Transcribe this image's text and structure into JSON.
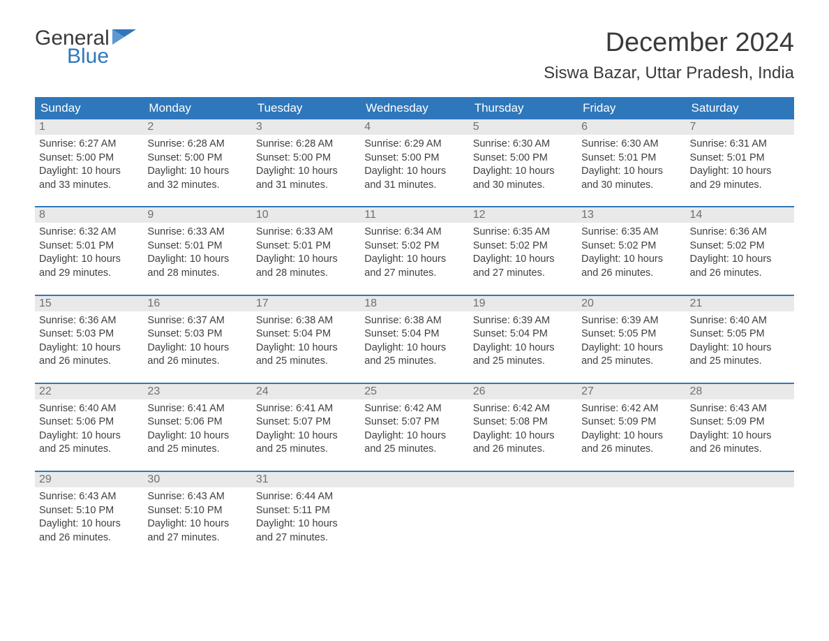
{
  "logo": {
    "word1": "General",
    "word2": "Blue"
  },
  "title": "December 2024",
  "location": "Siswa Bazar, Uttar Pradesh, India",
  "colors": {
    "header_blue": "#2f77bb",
    "daynum_bg": "#e9e9e9",
    "daynum_text": "#6f6f6f",
    "body_text": "#3f3f3f",
    "title_text": "#3a3a3a"
  },
  "fonts": {
    "title_size_pt": 28,
    "location_size_pt": 18,
    "dow_size_pt": 13,
    "body_size_pt": 11
  },
  "days_of_week": [
    "Sunday",
    "Monday",
    "Tuesday",
    "Wednesday",
    "Thursday",
    "Friday",
    "Saturday"
  ],
  "weeks": [
    [
      {
        "n": "1",
        "sunrise": "6:27 AM",
        "sunset": "5:00 PM",
        "dl_h": "10",
        "dl_m": "33"
      },
      {
        "n": "2",
        "sunrise": "6:28 AM",
        "sunset": "5:00 PM",
        "dl_h": "10",
        "dl_m": "32"
      },
      {
        "n": "3",
        "sunrise": "6:28 AM",
        "sunset": "5:00 PM",
        "dl_h": "10",
        "dl_m": "31"
      },
      {
        "n": "4",
        "sunrise": "6:29 AM",
        "sunset": "5:00 PM",
        "dl_h": "10",
        "dl_m": "31"
      },
      {
        "n": "5",
        "sunrise": "6:30 AM",
        "sunset": "5:00 PM",
        "dl_h": "10",
        "dl_m": "30"
      },
      {
        "n": "6",
        "sunrise": "6:30 AM",
        "sunset": "5:01 PM",
        "dl_h": "10",
        "dl_m": "30"
      },
      {
        "n": "7",
        "sunrise": "6:31 AM",
        "sunset": "5:01 PM",
        "dl_h": "10",
        "dl_m": "29"
      }
    ],
    [
      {
        "n": "8",
        "sunrise": "6:32 AM",
        "sunset": "5:01 PM",
        "dl_h": "10",
        "dl_m": "29"
      },
      {
        "n": "9",
        "sunrise": "6:33 AM",
        "sunset": "5:01 PM",
        "dl_h": "10",
        "dl_m": "28"
      },
      {
        "n": "10",
        "sunrise": "6:33 AM",
        "sunset": "5:01 PM",
        "dl_h": "10",
        "dl_m": "28"
      },
      {
        "n": "11",
        "sunrise": "6:34 AM",
        "sunset": "5:02 PM",
        "dl_h": "10",
        "dl_m": "27"
      },
      {
        "n": "12",
        "sunrise": "6:35 AM",
        "sunset": "5:02 PM",
        "dl_h": "10",
        "dl_m": "27"
      },
      {
        "n": "13",
        "sunrise": "6:35 AM",
        "sunset": "5:02 PM",
        "dl_h": "10",
        "dl_m": "26"
      },
      {
        "n": "14",
        "sunrise": "6:36 AM",
        "sunset": "5:02 PM",
        "dl_h": "10",
        "dl_m": "26"
      }
    ],
    [
      {
        "n": "15",
        "sunrise": "6:36 AM",
        "sunset": "5:03 PM",
        "dl_h": "10",
        "dl_m": "26"
      },
      {
        "n": "16",
        "sunrise": "6:37 AM",
        "sunset": "5:03 PM",
        "dl_h": "10",
        "dl_m": "26"
      },
      {
        "n": "17",
        "sunrise": "6:38 AM",
        "sunset": "5:04 PM",
        "dl_h": "10",
        "dl_m": "25"
      },
      {
        "n": "18",
        "sunrise": "6:38 AM",
        "sunset": "5:04 PM",
        "dl_h": "10",
        "dl_m": "25"
      },
      {
        "n": "19",
        "sunrise": "6:39 AM",
        "sunset": "5:04 PM",
        "dl_h": "10",
        "dl_m": "25"
      },
      {
        "n": "20",
        "sunrise": "6:39 AM",
        "sunset": "5:05 PM",
        "dl_h": "10",
        "dl_m": "25"
      },
      {
        "n": "21",
        "sunrise": "6:40 AM",
        "sunset": "5:05 PM",
        "dl_h": "10",
        "dl_m": "25"
      }
    ],
    [
      {
        "n": "22",
        "sunrise": "6:40 AM",
        "sunset": "5:06 PM",
        "dl_h": "10",
        "dl_m": "25"
      },
      {
        "n": "23",
        "sunrise": "6:41 AM",
        "sunset": "5:06 PM",
        "dl_h": "10",
        "dl_m": "25"
      },
      {
        "n": "24",
        "sunrise": "6:41 AM",
        "sunset": "5:07 PM",
        "dl_h": "10",
        "dl_m": "25"
      },
      {
        "n": "25",
        "sunrise": "6:42 AM",
        "sunset": "5:07 PM",
        "dl_h": "10",
        "dl_m": "25"
      },
      {
        "n": "26",
        "sunrise": "6:42 AM",
        "sunset": "5:08 PM",
        "dl_h": "10",
        "dl_m": "26"
      },
      {
        "n": "27",
        "sunrise": "6:42 AM",
        "sunset": "5:09 PM",
        "dl_h": "10",
        "dl_m": "26"
      },
      {
        "n": "28",
        "sunrise": "6:43 AM",
        "sunset": "5:09 PM",
        "dl_h": "10",
        "dl_m": "26"
      }
    ],
    [
      {
        "n": "29",
        "sunrise": "6:43 AM",
        "sunset": "5:10 PM",
        "dl_h": "10",
        "dl_m": "26"
      },
      {
        "n": "30",
        "sunrise": "6:43 AM",
        "sunset": "5:10 PM",
        "dl_h": "10",
        "dl_m": "27"
      },
      {
        "n": "31",
        "sunrise": "6:44 AM",
        "sunset": "5:11 PM",
        "dl_h": "10",
        "dl_m": "27"
      },
      null,
      null,
      null,
      null
    ]
  ],
  "labels": {
    "sunrise": "Sunrise: ",
    "sunset": "Sunset: ",
    "daylight_prefix": "Daylight: ",
    "hours_word": " hours",
    "and_word": "and ",
    "minutes_word": " minutes."
  }
}
